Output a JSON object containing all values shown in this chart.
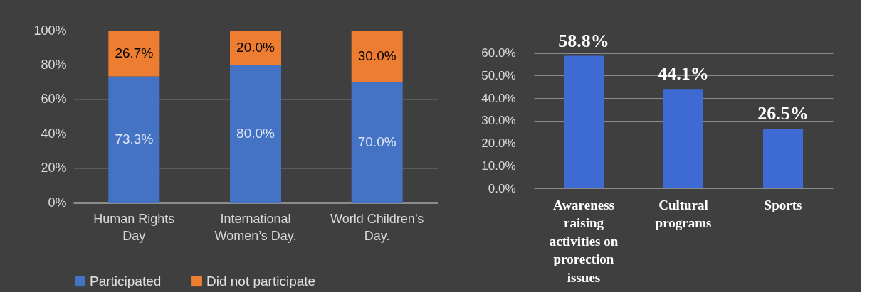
{
  "chart_data": [
    {
      "type": "bar",
      "stacked": true,
      "categories": [
        "Human Rights Day",
        "International Women’s Day.",
        "World Children’s Day."
      ],
      "series": [
        {
          "name": "Participated",
          "color": "#4472c4",
          "values": [
            73.3,
            80.0,
            70.0
          ],
          "value_labels": [
            "73.3%",
            "80.0%",
            "70.0%"
          ]
        },
        {
          "name": "Did not participate",
          "color": "#ed7d31",
          "values": [
            26.7,
            20.0,
            30.0
          ],
          "value_labels": [
            "26.7%",
            "20.0%",
            "30.0%"
          ]
        }
      ],
      "ylim": [
        0,
        100
      ],
      "yticks": [
        {
          "value": 0,
          "label": "0%"
        },
        {
          "value": 20,
          "label": "20%"
        },
        {
          "value": 40,
          "label": "40%"
        },
        {
          "value": 60,
          "label": "60%"
        },
        {
          "value": 80,
          "label": "80%"
        },
        {
          "value": 100,
          "label": "100%"
        }
      ],
      "grid": "y",
      "legend": "bottom"
    },
    {
      "type": "bar",
      "categories": [
        "Awareness raising activities on prorection issues",
        "Cultural programs",
        "Sports"
      ],
      "values": [
        58.8,
        44.1,
        26.5
      ],
      "color": "#3d6bd3",
      "value_labels": [
        "58.8%",
        "44.1%",
        "26.5%"
      ],
      "ylim": [
        0,
        70
      ],
      "yticks": [
        {
          "value": 0,
          "label": "0.0%"
        },
        {
          "value": 10,
          "label": "10.0%"
        },
        {
          "value": 20,
          "label": "20.0%"
        },
        {
          "value": 30,
          "label": "30.0%"
        },
        {
          "value": 40,
          "label": "40.0%"
        },
        {
          "value": 50,
          "label": "50.0%"
        },
        {
          "value": 60,
          "label": "60.0%"
        },
        {
          "value": 70,
          "label": null
        }
      ],
      "grid": "y"
    }
  ]
}
